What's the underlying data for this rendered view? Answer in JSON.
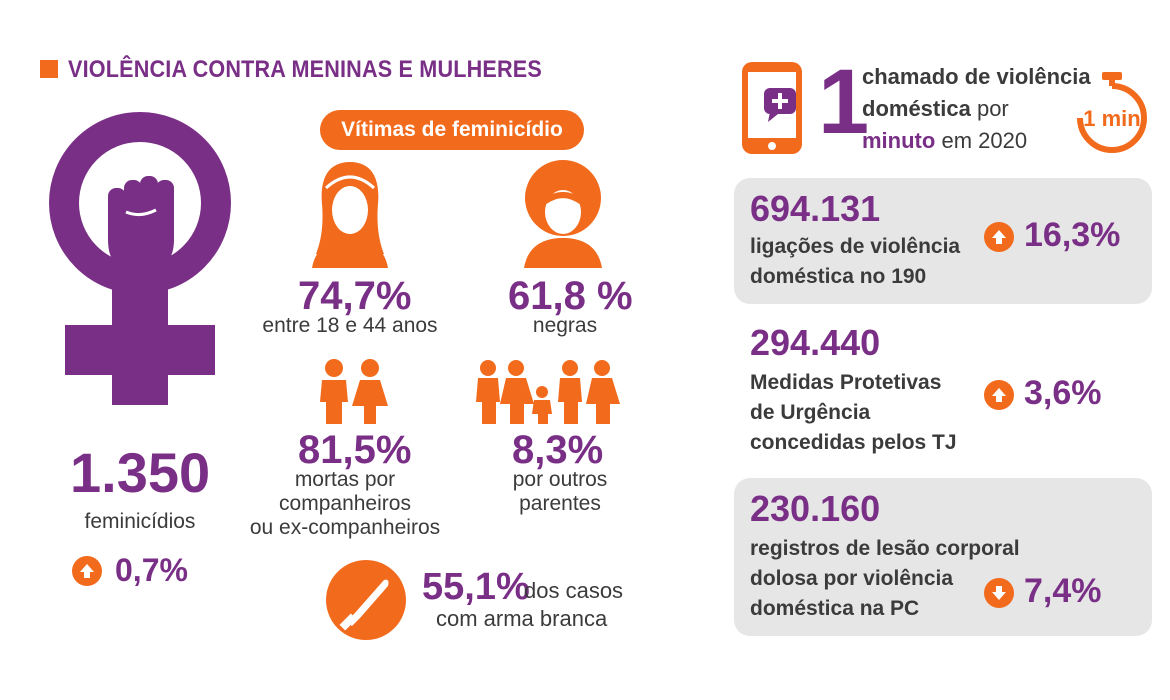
{
  "header": {
    "title": "VIOLÊNCIA CONTRA MENINAS E MULHERES"
  },
  "colors": {
    "purple": "#7a2f86",
    "orange": "#f26a1b",
    "gray_box": "#e6e6e6",
    "text": "#3b3b3b"
  },
  "left": {
    "femicides_value": "1.350",
    "femicides_label": "feminicídios",
    "femicides_change": "0,7%",
    "change_direction": "up"
  },
  "victims": {
    "pill": "Vítimas de feminicídio",
    "age": {
      "value": "74,7%",
      "label": "entre 18 e 44 anos"
    },
    "race": {
      "value": "61,8 %",
      "label": "negras"
    },
    "partners": {
      "value": "81,5%",
      "label_lines": [
        "mortas por",
        "companheiros",
        "ou ex-companheiros"
      ]
    },
    "relatives": {
      "value": "8,3%",
      "label_lines": [
        "por outros",
        "parentes"
      ]
    },
    "weapon": {
      "value": "55,1%",
      "label_line1": "dos casos",
      "label_line2": "com arma branca"
    }
  },
  "right": {
    "call_rate": {
      "big": "1",
      "line1": "chamado de violência",
      "line2_a": "doméstica",
      "line2_b": "por",
      "line3_a": "minuto",
      "line3_b": "em 2020",
      "timer": "1 min"
    },
    "stats": [
      {
        "value": "694.131",
        "lines": [
          "ligações de violência",
          "doméstica no 190"
        ],
        "change": "16,3%",
        "direction": "up"
      },
      {
        "value": "294.440",
        "lines": [
          "Medidas Protetivas",
          "de Urgência",
          "concedidas pelos TJ"
        ],
        "change": "3,6%",
        "direction": "up"
      },
      {
        "value": "230.160",
        "lines": [
          "registros de lesão corporal",
          "dolosa por violência",
          "doméstica na PC"
        ],
        "change": "7,4%",
        "direction": "down"
      }
    ]
  },
  "icons": [
    "female-symbol-fist-icon",
    "woman-head-icon",
    "woman-afro-head-icon",
    "couple-icon",
    "family-icon",
    "knife-icon",
    "phone-message-icon",
    "stopwatch-icon",
    "arrow-up-icon",
    "arrow-down-icon"
  ]
}
